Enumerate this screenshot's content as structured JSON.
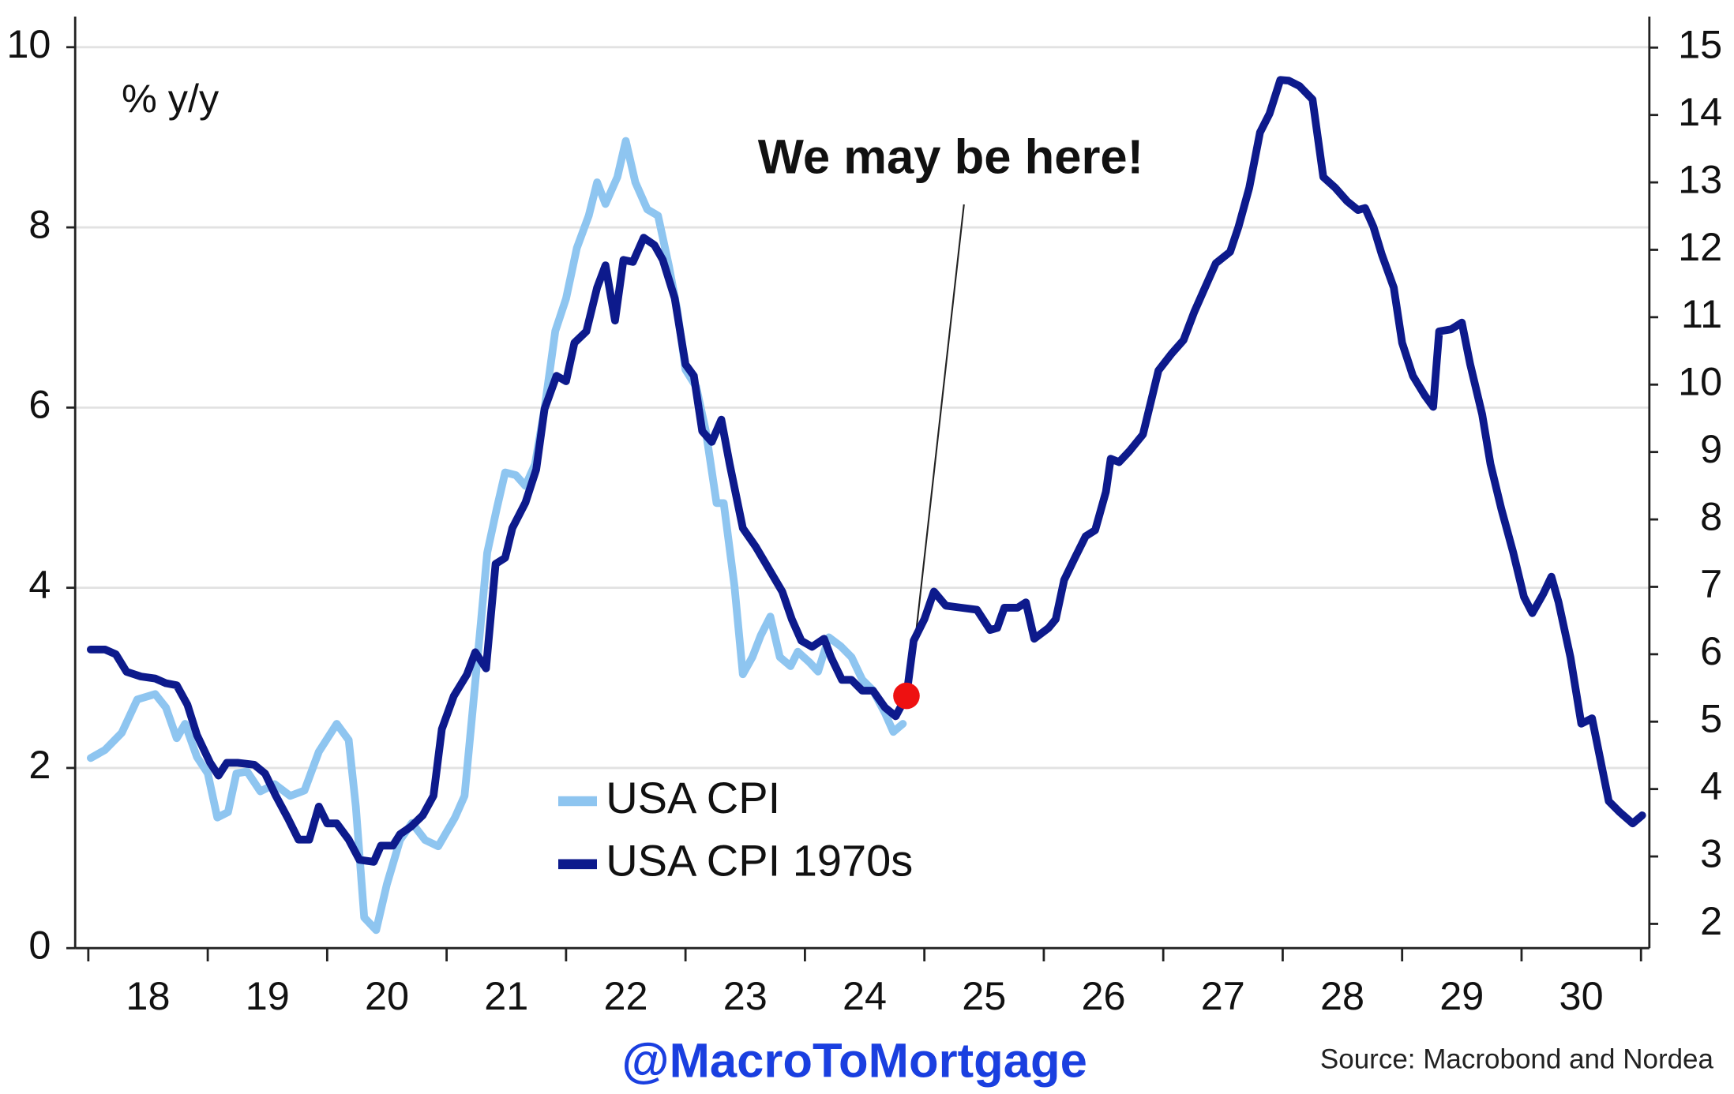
{
  "chart_data": {
    "type": "line",
    "axis_label": "% y/y",
    "annotation": "We may be here!",
    "watermark": "@MacroToMortgage",
    "source": "Source: Macrobond and Nordea",
    "xlim": [
      2017.89,
      2031.07
    ],
    "xticks": [
      {
        "value": 2018,
        "label": "18"
      },
      {
        "value": 2019,
        "label": "19"
      },
      {
        "value": 2020,
        "label": "20"
      },
      {
        "value": 2021,
        "label": "21"
      },
      {
        "value": 2022,
        "label": "22"
      },
      {
        "value": 2023,
        "label": "23"
      },
      {
        "value": 2024,
        "label": "24"
      },
      {
        "value": 2025,
        "label": "25"
      },
      {
        "value": 2026,
        "label": "26"
      },
      {
        "value": 2027,
        "label": "27"
      },
      {
        "value": 2028,
        "label": "28"
      },
      {
        "value": 2029,
        "label": "29"
      },
      {
        "value": 2030,
        "label": "30"
      },
      {
        "value": 2031,
        "label": null
      }
    ],
    "ylim": [
      0,
      10.34
    ],
    "yticks": [
      0,
      2,
      4,
      6,
      8,
      10
    ],
    "y2lim": [
      1.64,
      15.46
    ],
    "y2ticks": [
      2,
      3,
      4,
      5,
      6,
      7,
      8,
      9,
      10,
      11,
      12,
      13,
      14,
      15
    ],
    "grid": true,
    "marker": {
      "x": 2024.85,
      "y": 2.8,
      "color": "#ee1111"
    },
    "series": [
      {
        "name": "USA CPI",
        "color": "#8ec5f0",
        "x": [
          2018.02,
          2018.14,
          2018.28,
          2018.41,
          2018.56,
          2018.65,
          2018.74,
          2018.81,
          2018.91,
          2019.0,
          2019.08,
          2019.17,
          2019.24,
          2019.33,
          2019.44,
          2019.56,
          2019.69,
          2019.81,
          2019.93,
          2020.08,
          2020.18,
          2020.24,
          2020.31,
          2020.41,
          2020.5,
          2020.61,
          2020.71,
          2020.82,
          2020.93,
          2021.07,
          2021.15,
          2021.22,
          2021.29,
          2021.34,
          2021.42,
          2021.49,
          2021.58,
          2021.66,
          2021.74,
          2021.82,
          2021.91,
          2022.0,
          2022.09,
          2022.19,
          2022.26,
          2022.33,
          2022.43,
          2022.5,
          2022.58,
          2022.68,
          2022.77,
          2022.86,
          2022.93,
          2023.0,
          2023.09,
          2023.17,
          2023.26,
          2023.32,
          2023.41,
          2023.48,
          2023.56,
          2023.63,
          2023.71,
          2023.79,
          2023.88,
          2023.94,
          2024.04,
          2024.11,
          2024.2,
          2024.3,
          2024.39,
          2024.48,
          2024.57,
          2024.67,
          2024.74,
          2024.82
        ],
        "values": [
          2.11,
          2.2,
          2.39,
          2.76,
          2.82,
          2.67,
          2.33,
          2.49,
          2.12,
          1.94,
          1.45,
          1.51,
          1.94,
          1.96,
          1.74,
          1.82,
          1.69,
          1.75,
          2.18,
          2.49,
          2.31,
          1.57,
          0.34,
          0.2,
          0.71,
          1.2,
          1.39,
          1.2,
          1.13,
          1.45,
          1.69,
          2.67,
          3.66,
          4.39,
          4.88,
          5.28,
          5.25,
          5.13,
          5.37,
          5.99,
          6.85,
          7.21,
          7.77,
          8.13,
          8.5,
          8.26,
          8.56,
          8.96,
          8.5,
          8.2,
          8.13,
          7.58,
          7.09,
          6.42,
          6.23,
          5.74,
          4.94,
          4.94,
          4.02,
          3.04,
          3.23,
          3.47,
          3.68,
          3.23,
          3.13,
          3.29,
          3.17,
          3.07,
          3.45,
          3.35,
          3.23,
          2.98,
          2.86,
          2.61,
          2.4,
          2.49
        ]
      },
      {
        "name": "USA CPI 1970s",
        "color": "#0d1a8c",
        "axis": "y2",
        "x": [
          2018.02,
          2018.14,
          2018.23,
          2018.32,
          2018.44,
          2018.56,
          2018.65,
          2018.74,
          2018.83,
          2018.91,
          2019.02,
          2019.09,
          2019.16,
          2019.25,
          2019.39,
          2019.48,
          2019.57,
          2019.67,
          2019.76,
          2019.85,
          2019.93,
          2020.0,
          2020.08,
          2020.18,
          2020.27,
          2020.39,
          2020.45,
          2020.55,
          2020.61,
          2020.7,
          2020.8,
          2020.89,
          2020.96,
          2021.06,
          2021.17,
          2021.24,
          2021.33,
          2021.41,
          2021.49,
          2021.55,
          2021.66,
          2021.75,
          2021.82,
          2021.92,
          2022.0,
          2022.07,
          2022.17,
          2022.26,
          2022.33,
          2022.41,
          2022.48,
          2022.56,
          2022.65,
          2022.74,
          2022.81,
          2022.91,
          2023.0,
          2023.07,
          2023.14,
          2023.22,
          2023.3,
          2023.37,
          2023.48,
          2023.59,
          2023.7,
          2023.81,
          2023.89,
          2023.97,
          2024.06,
          2024.16,
          2024.22,
          2024.31,
          2024.39,
          2024.48,
          2024.57,
          2024.67,
          2024.76,
          2024.85,
          2024.91,
          2025.0,
          2025.08,
          2025.18,
          2025.31,
          2025.44,
          2025.55,
          2025.61,
          2025.67,
          2025.78,
          2025.85,
          2025.92,
          2026.04,
          2026.1,
          2026.17,
          2026.26,
          2026.35,
          2026.43,
          2026.52,
          2026.56,
          2026.63,
          2026.72,
          2026.83,
          2026.96,
          2027.07,
          2027.17,
          2027.26,
          2027.35,
          2027.44,
          2027.56,
          2027.63,
          2027.72,
          2027.81,
          2027.89,
          2027.98,
          2028.05,
          2028.14,
          2028.25,
          2028.34,
          2028.44,
          2028.54,
          2028.63,
          2028.69,
          2028.76,
          2028.83,
          2028.93,
          2029.0,
          2029.09,
          2029.19,
          2029.26,
          2029.31,
          2029.41,
          2029.5,
          2029.57,
          2029.67,
          2029.74,
          2029.83,
          2029.93,
          2030.02,
          2030.09,
          2030.18,
          2030.25,
          2030.31,
          2030.41,
          2030.5,
          2030.59,
          2030.73,
          2030.82,
          2030.93,
          2031.01
        ],
        "values": [
          6.07,
          6.07,
          6.0,
          5.74,
          5.67,
          5.64,
          5.57,
          5.54,
          5.25,
          4.8,
          4.39,
          4.2,
          4.39,
          4.39,
          4.36,
          4.23,
          3.9,
          3.57,
          3.25,
          3.25,
          3.74,
          3.49,
          3.49,
          3.25,
          2.95,
          2.92,
          3.16,
          3.16,
          3.33,
          3.44,
          3.61,
          3.9,
          4.89,
          5.38,
          5.7,
          6.03,
          5.79,
          7.34,
          7.43,
          7.87,
          8.25,
          8.74,
          9.64,
          10.13,
          10.05,
          10.62,
          10.79,
          11.44,
          11.77,
          10.95,
          11.85,
          11.82,
          12.18,
          12.07,
          11.85,
          11.28,
          10.3,
          10.13,
          9.31,
          9.15,
          9.48,
          8.82,
          7.87,
          7.59,
          7.26,
          6.93,
          6.52,
          6.2,
          6.11,
          6.23,
          5.95,
          5.62,
          5.62,
          5.46,
          5.46,
          5.21,
          5.08,
          5.38,
          6.2,
          6.52,
          6.93,
          6.72,
          6.69,
          6.66,
          6.36,
          6.39,
          6.69,
          6.69,
          6.77,
          6.23,
          6.39,
          6.52,
          7.1,
          7.43,
          7.75,
          7.84,
          8.41,
          8.9,
          8.85,
          9.02,
          9.26,
          10.21,
          10.46,
          10.66,
          11.08,
          11.44,
          11.8,
          11.97,
          12.34,
          12.92,
          13.74,
          14.02,
          14.52,
          14.51,
          14.43,
          14.23,
          13.08,
          12.92,
          12.72,
          12.59,
          12.62,
          12.34,
          11.93,
          11.44,
          10.62,
          10.13,
          9.84,
          9.67,
          10.79,
          10.82,
          10.92,
          10.3,
          9.56,
          8.82,
          8.16,
          7.51,
          6.85,
          6.61,
          6.89,
          7.15,
          6.77,
          5.95,
          4.97,
          5.05,
          3.82,
          3.66,
          3.49,
          3.61
        ]
      }
    ]
  }
}
